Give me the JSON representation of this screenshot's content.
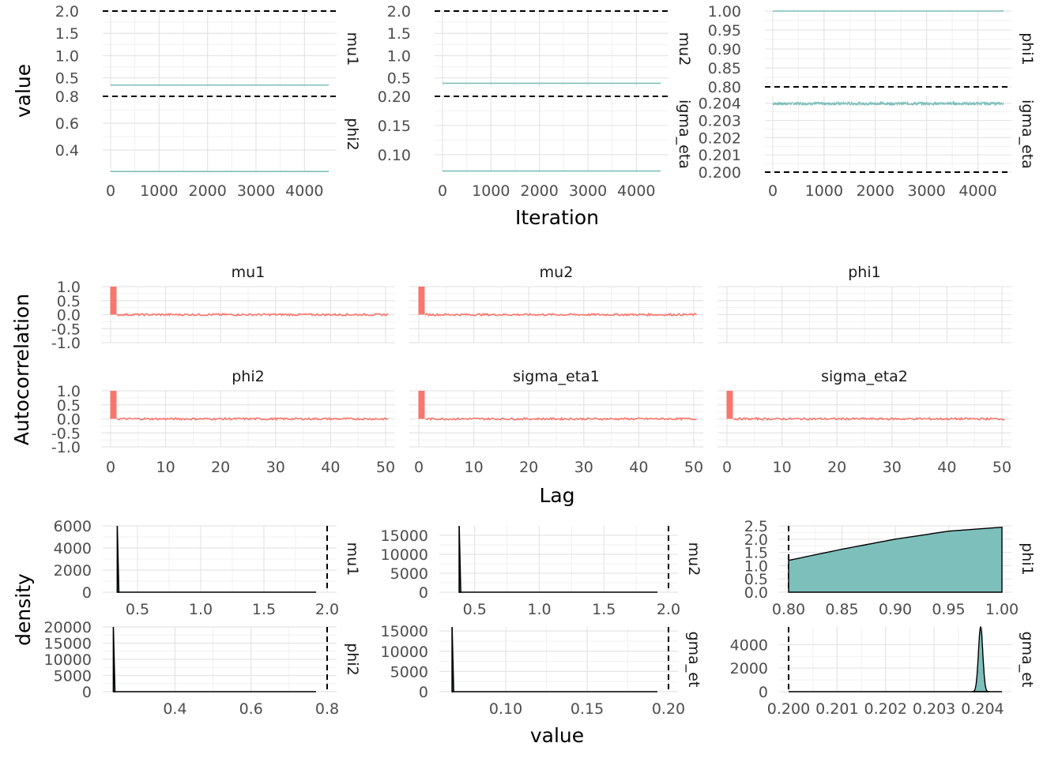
{
  "colors": {
    "trace": "#7DBFBB",
    "acf": "#F8766D",
    "density_fill": "#7DBFBB",
    "grid_major": "#E5E5E5",
    "grid_minor": "#F1F1F1"
  },
  "sections": {
    "trace": {
      "xlabel": "Iteration",
      "ylabel": "value"
    },
    "acf": {
      "xlabel": "Lag",
      "ylabel": "Autocorrelation"
    },
    "density": {
      "xlabel": "value",
      "ylabel": "density"
    }
  },
  "chart_data": [
    {
      "type": "line",
      "section": "trace",
      "panels": [
        {
          "strip": "mu1",
          "xlim": [
            0,
            4500
          ],
          "ylim": [
            0.3,
            2.0
          ],
          "xticks": [
            "0",
            "1000",
            "2000",
            "3000",
            "4000"
          ],
          "yticks": [
            "0.5",
            "1.0",
            "1.5",
            "2.0"
          ],
          "yticks_v": [
            0.5,
            1.0,
            1.5,
            2.0
          ],
          "xticks_v": [
            0,
            1000,
            2000,
            3000,
            4000
          ],
          "constant_value": 0.34,
          "bounds": [
            2.0
          ]
        },
        {
          "strip": "phi2",
          "xlim": [
            0,
            4500
          ],
          "ylim": [
            0.235,
            0.8
          ],
          "xticks": [],
          "yticks": [
            "0.4",
            "0.6",
            "0.8"
          ],
          "yticks_v": [
            0.4,
            0.6,
            0.8
          ],
          "xticks_v": [],
          "constant_value": 0.24,
          "bounds": [
            0.8
          ]
        },
        {
          "strip": "mu2",
          "xlim": [
            0,
            4500
          ],
          "ylim": [
            0.3,
            2.0
          ],
          "xticks": [
            "0",
            "1000",
            "2000",
            "3000",
            "4000"
          ],
          "yticks": [
            "0.5",
            "1.0",
            "1.5",
            "2.0"
          ],
          "yticks_v": [
            0.5,
            1.0,
            1.5,
            2.0
          ],
          "xticks_v": [
            0,
            1000,
            2000,
            3000,
            4000
          ],
          "constant_value": 0.38,
          "bounds": [
            2.0
          ]
        },
        {
          "strip": "igma_eta",
          "xlim": [
            0,
            4500
          ],
          "ylim": [
            0.07,
            0.2
          ],
          "xticks": [],
          "yticks": [
            "0.10",
            "0.15",
            "0.20"
          ],
          "yticks_v": [
            0.1,
            0.15,
            0.2
          ],
          "xticks_v": [],
          "constant_value": 0.072,
          "bounds": [
            0.2
          ]
        },
        {
          "strip": "phi1",
          "xlim": [
            0,
            4500
          ],
          "ylim": [
            0.8,
            1.0
          ],
          "xticks": [
            "0",
            "1000",
            "2000",
            "3000",
            "4000"
          ],
          "yticks": [
            "0.80",
            "0.85",
            "0.90",
            "0.95",
            "1.00"
          ],
          "yticks_v": [
            0.8,
            0.85,
            0.9,
            0.95,
            1.0
          ],
          "xticks_v": [
            0,
            1000,
            2000,
            3000,
            4000
          ],
          "constant_value": 1.0,
          "bounds": [
            0.8
          ]
        },
        {
          "strip": "igma_eta",
          "xlim": [
            0,
            4500
          ],
          "ylim": [
            0.2,
            0.2044
          ],
          "xticks": [],
          "yticks": [
            "0.200",
            "0.201",
            "0.202",
            "0.203",
            "0.204"
          ],
          "yticks_v": [
            0.2,
            0.201,
            0.202,
            0.203,
            0.204
          ],
          "xticks_v": [],
          "constant_value": 0.20398,
          "noise": 9e-05,
          "bounds": [
            0.2
          ]
        }
      ]
    },
    {
      "type": "bar",
      "section": "acf",
      "lags": [
        0,
        50
      ],
      "lag0": 1.0,
      "ylim": [
        -1.0,
        1.0
      ],
      "yticks": [
        "1.0",
        "0.5",
        "0.0",
        "-0.5",
        "-1.0"
      ],
      "xticks": [
        "0",
        "10",
        "20",
        "30",
        "40",
        "50"
      ],
      "panels": [
        {
          "strip": "mu1",
          "has_data": true
        },
        {
          "strip": "mu2",
          "has_data": true
        },
        {
          "strip": "phi1",
          "has_data": false
        },
        {
          "strip": "phi2",
          "has_data": true
        },
        {
          "strip": "sigma_eta1",
          "has_data": true
        },
        {
          "strip": "sigma_eta2",
          "has_data": true
        }
      ]
    },
    {
      "type": "area",
      "section": "density",
      "panels": [
        {
          "strip": "mu1",
          "xlim": [
            0.3,
            2.0
          ],
          "ylim": [
            0,
            6000
          ],
          "xticks": [
            "0.5",
            "1.0",
            "1.5",
            "2.0"
          ],
          "xticks_v": [
            0.5,
            1.0,
            1.5,
            2.0
          ],
          "yticks": [
            "0",
            "2000",
            "4000",
            "6000"
          ],
          "yticks_v": [
            0,
            2000,
            4000,
            6000
          ],
          "spike_at": 0.34,
          "spike_height": 6000,
          "bounds": [
            2.0
          ]
        },
        {
          "strip": "phi2",
          "xlim": [
            0.235,
            0.8
          ],
          "ylim": [
            0,
            20000
          ],
          "xticks": [
            "0.4",
            "0.6",
            "0.8"
          ],
          "xticks_v": [
            0.4,
            0.6,
            0.8
          ],
          "yticks": [
            "0",
            "5000",
            "10000",
            "15000",
            "20000"
          ],
          "yticks_v": [
            0,
            5000,
            10000,
            15000,
            20000
          ],
          "spike_at": 0.238,
          "spike_height": 20000,
          "bounds": [
            0.8
          ]
        },
        {
          "strip": "mu2",
          "xlim": [
            0.3,
            2.0
          ],
          "ylim": [
            0,
            17500
          ],
          "xticks": [
            "0.5",
            "1.0",
            "1.5",
            "2.0"
          ],
          "xticks_v": [
            0.5,
            1.0,
            1.5,
            2.0
          ],
          "yticks": [
            "0",
            "5000",
            "10000",
            "15000"
          ],
          "yticks_v": [
            0,
            5000,
            10000,
            15000
          ],
          "spike_at": 0.38,
          "spike_height": 17500,
          "bounds": [
            2.0
          ]
        },
        {
          "strip": "gma_et",
          "xlim": [
            0.065,
            0.2
          ],
          "ylim": [
            0,
            16000
          ],
          "xticks": [
            "0.10",
            "0.15",
            "0.20"
          ],
          "xticks_v": [
            0.1,
            0.15,
            0.2
          ],
          "yticks": [
            "0",
            "5000",
            "10000",
            "15000"
          ],
          "yticks_v": [
            0,
            5000,
            10000,
            15000
          ],
          "spike_at": 0.067,
          "spike_height": 16000,
          "bounds": [
            0.2
          ]
        },
        {
          "strip": "phi1",
          "xlim": [
            0.8,
            1.0
          ],
          "ylim": [
            0,
            2.5
          ],
          "xticks": [
            "0.80",
            "0.85",
            "0.90",
            "0.95",
            "1.00"
          ],
          "xticks_v": [
            0.8,
            0.85,
            0.9,
            0.95,
            1.0
          ],
          "yticks": [
            "0.0",
            "0.5",
            "1.0",
            "1.5",
            "2.0",
            "2.5"
          ],
          "yticks_v": [
            0,
            0.5,
            1.0,
            1.5,
            2.0,
            2.5
          ],
          "curve_x": [
            0.8,
            0.85,
            0.9,
            0.95,
            1.0
          ],
          "curve_y": [
            1.2,
            1.62,
            2.0,
            2.3,
            2.45
          ],
          "bounds": [
            0.8
          ]
        },
        {
          "strip": "gma_et",
          "xlim": [
            0.2,
            0.2044
          ],
          "ylim": [
            0,
            5500
          ],
          "xticks": [
            "0.200",
            "0.201",
            "0.202",
            "0.203",
            "0.204"
          ],
          "xticks_v": [
            0.2,
            0.201,
            0.202,
            0.203,
            0.204
          ],
          "yticks": [
            "0",
            "2000",
            "4000"
          ],
          "yticks_v": [
            0,
            2000,
            4000
          ],
          "peak_at": 0.20396,
          "peak_height": 5500,
          "peak_sd": 4.5e-05,
          "bounds": [
            0.2
          ]
        }
      ]
    }
  ]
}
